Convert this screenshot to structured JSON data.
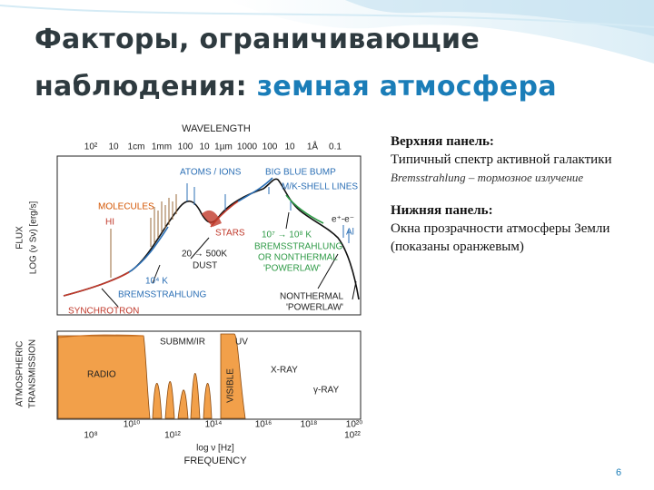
{
  "title": {
    "line1": "Факторы, ограничивающие",
    "line2_prefix": "наблюдения:",
    "line2_highlight": "земная атмосфера"
  },
  "figure": {
    "wavelength_title": "WAVELENGTH",
    "wavelength_ticks": [
      "10²",
      "10",
      "1cm",
      "1mm",
      "100",
      "10",
      "1µm",
      "1000",
      "100",
      "10",
      "1Å",
      "0.1"
    ],
    "flux_axis": [
      "FLUX",
      "LOG (ν Sν) [erg/s]"
    ],
    "top_labels": {
      "molecules": "MOLECULES",
      "hi": "HI",
      "atoms_ions": "ATOMS / IONS",
      "big_blue_bump": "BIG BLUE BUMP",
      "mk_shell_lines": "M/K-SHELL LINES",
      "stars": "STARS",
      "dust_range": "20 → 500K",
      "dust": "DUST",
      "brems_temp": "10⁴ K",
      "bremsstrahlung": "BREMSSTRAHLUNG",
      "synchrotron": "SYNCHROTRON",
      "hot_temp": "10⁷ → 10⁸ K",
      "hot_brems": "BREMSSTRAHLUNG",
      "or_nonthermal": "OR NONTHERMAL",
      "powerlaw": "'POWERLAW'",
      "pair": "e⁺-e⁻",
      "al": "Al",
      "nonthermal": "NONTHERMAL",
      "nonthermal_powerlaw": "'POWERLAW'"
    },
    "transmission_axis": [
      "ATMOSPHERIC",
      "TRANSMISSION"
    ],
    "bottom_labels": {
      "submm_ir": "SUBMM/IR",
      "uv": "UV",
      "radio": "RADIO",
      "visible": "VISIBLE",
      "xray": "X-RAY",
      "gamma": "γ-RAY"
    },
    "frequency_ticks_upper": [
      "10¹⁰",
      "10¹⁴",
      "10¹⁶",
      "10¹⁸",
      "10²⁰"
    ],
    "frequency_ticks_lower": [
      "10⁸",
      "10¹²",
      "10²²"
    ],
    "frequency_unit": "log ν   [Hz]",
    "frequency_title": "FREQUENCY"
  },
  "text": {
    "upper_heading": "Верхняя панель:",
    "upper_body": "Типичный спектр активной галактики",
    "brems_note": "Bremsstrahlung – тормозное излучение",
    "lower_heading": "Нижняя панель:",
    "lower_body": "Окна прозрачности атмосферы Земли (показаны оранжевым)"
  },
  "page_number": "6"
}
